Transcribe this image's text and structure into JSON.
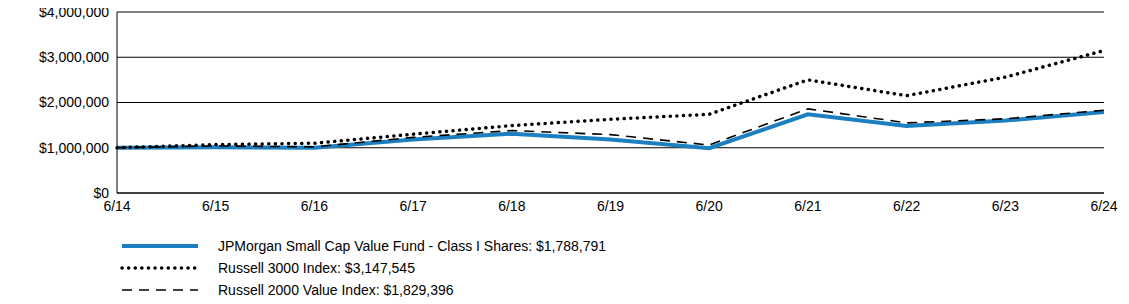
{
  "chart_data": {
    "type": "line",
    "x": [
      "6/14",
      "6/15",
      "6/16",
      "6/17",
      "6/18",
      "6/19",
      "6/20",
      "6/21",
      "6/22",
      "6/23",
      "6/24"
    ],
    "series": [
      {
        "name": "JPMorgan Small Cap Value Fund - Class I Shares: $1,788,791",
        "color": "#1b7fc0",
        "line_style": "solid",
        "values": [
          1000000,
          1010000,
          1000000,
          1180000,
          1310000,
          1180000,
          990000,
          1740000,
          1480000,
          1600000,
          1788791
        ]
      },
      {
        "name": "Russell 3000 Index: $3,147,545",
        "color": "#000000",
        "line_style": "dotted",
        "values": [
          1000000,
          1070000,
          1100000,
          1300000,
          1490000,
          1630000,
          1740000,
          2500000,
          2150000,
          2560000,
          3147545
        ]
      },
      {
        "name": "Russell 2000 Value Index: $1,829,396",
        "color": "#000000",
        "line_style": "dashed",
        "values": [
          1000000,
          1040000,
          1020000,
          1230000,
          1380000,
          1290000,
          1060000,
          1860000,
          1550000,
          1640000,
          1829396
        ]
      }
    ],
    "ylim": [
      0,
      4000000
    ],
    "yticks": [
      {
        "value": 0,
        "label": "$0"
      },
      {
        "value": 1000000,
        "label": "$1,000,000"
      },
      {
        "value": 2000000,
        "label": "$2,000,000"
      },
      {
        "value": 3000000,
        "label": "$3,000,000"
      },
      {
        "value": 4000000,
        "label": "$4,000,000"
      }
    ],
    "grid": true
  }
}
